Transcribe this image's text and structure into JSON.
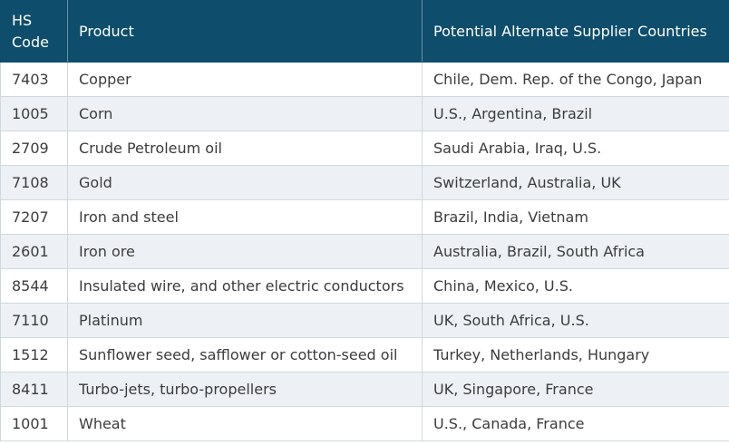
{
  "table": {
    "header": [
      "HS Code",
      "Product",
      "Potential Alternate Supplier Countries"
    ],
    "rows": [
      [
        "7403",
        "Copper",
        "Chile, Dem. Rep. of the Congo, Japan"
      ],
      [
        "1005",
        "Corn",
        "U.S., Argentina, Brazil"
      ],
      [
        "2709",
        "Crude Petroleum oil",
        "Saudi Arabia, Iraq, U.S."
      ],
      [
        "7108",
        "Gold",
        "Switzerland, Australia, UK"
      ],
      [
        "7207",
        "Iron and steel",
        "Brazil, India, Vietnam"
      ],
      [
        "2601",
        "Iron ore",
        "Australia, Brazil, South Africa"
      ],
      [
        "8544",
        "Insulated wire, and other electric conductors",
        "China, Mexico, U.S."
      ],
      [
        "7110",
        "Platinum",
        "UK, South Africa, U.S."
      ],
      [
        "1512",
        "Sunflower seed, safflower or cotton-seed oil",
        "Turkey, Netherlands, Hungary"
      ],
      [
        "8411",
        "Turbo-jets, turbo-propellers",
        "UK, Singapore, France"
      ],
      [
        "1001",
        "Wheat",
        "U.S., Canada, France"
      ]
    ]
  }
}
